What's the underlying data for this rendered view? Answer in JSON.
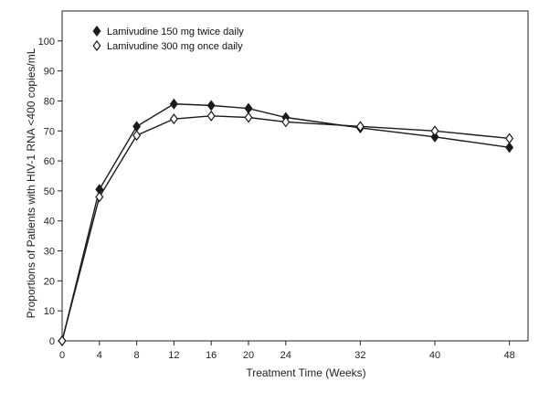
{
  "chart_data": {
    "type": "line",
    "title": "",
    "xlabel": "Treatment Time (Weeks)",
    "ylabel": "Proportions of Patients with HIV-1 RNA <400 copies/mL",
    "xlim": [
      0,
      50
    ],
    "ylim": [
      0,
      110
    ],
    "x_ticks": [
      0,
      4,
      8,
      12,
      16,
      20,
      24,
      32,
      40,
      48
    ],
    "y_ticks": [
      0,
      10,
      20,
      30,
      40,
      50,
      60,
      70,
      80,
      90,
      100
    ],
    "grid": false,
    "legend_position": "top-left",
    "x": [
      0,
      4,
      8,
      12,
      16,
      20,
      24,
      32,
      40,
      48
    ],
    "series": [
      {
        "name": "Lamivudine 150 mg twice daily",
        "marker": "filled-diamond",
        "color": "#1a1a1a",
        "values": [
          0,
          50.5,
          71.5,
          79,
          78.5,
          77.5,
          74.5,
          71,
          68,
          64.5
        ]
      },
      {
        "name": "Lamivudine 300 mg once daily",
        "marker": "open-diamond",
        "color": "#1a1a1a",
        "values": [
          0,
          48,
          68.5,
          74,
          75,
          74.5,
          73,
          71.5,
          70,
          67.5
        ]
      }
    ]
  }
}
